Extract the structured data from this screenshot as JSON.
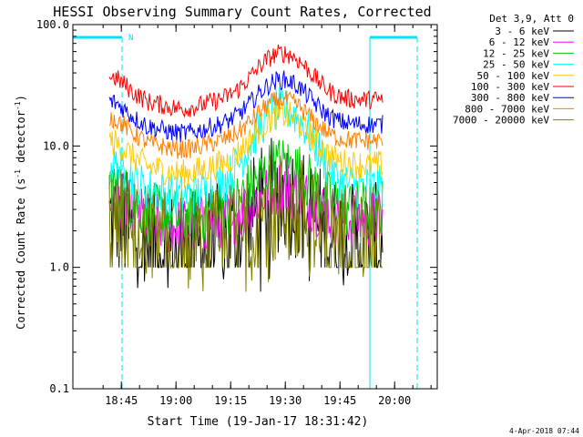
{
  "chart_data": {
    "type": "line",
    "title": "HESSI Observing Summary Count Rates, Corrected",
    "xlabel": "Start Time (19-Jan-17 18:31:42)",
    "ylabel_main": "Corrected Count Rate (s",
    "ylabel_sup1": "-1",
    "ylabel_mid": " detector",
    "ylabel_sup2": "-1",
    "ylabel_end": ")",
    "yscale": "log",
    "ylim": [
      0.1,
      100
    ],
    "y_ticks": [
      {
        "value": 0.1,
        "label": "0.1"
      },
      {
        "value": 1,
        "label": "1.0"
      },
      {
        "value": 10,
        "label": "10.0"
      },
      {
        "value": 100,
        "label": "100.0"
      }
    ],
    "xlim_minutes": [
      0,
      100
    ],
    "x_ticks": [
      {
        "minutes": 13.3,
        "label": "18:45"
      },
      {
        "minutes": 28.3,
        "label": "19:00"
      },
      {
        "minutes": 43.3,
        "label": "19:15"
      },
      {
        "minutes": 58.3,
        "label": "19:30"
      },
      {
        "minutes": 73.3,
        "label": "19:45"
      },
      {
        "minutes": 88.3,
        "label": "20:00"
      }
    ],
    "data_range_minutes": [
      10,
      85
    ],
    "legend_position": "top-right-outside",
    "legend_header": "Det 3,9, Att 0",
    "series": [
      {
        "name": "3 - 6 keV",
        "color": "#000000",
        "base": 1.6,
        "peak": 4.0,
        "noise": 0.5
      },
      {
        "name": "6 - 12 keV",
        "color": "#ff00ff",
        "base": 2.5,
        "peak": 4.5,
        "noise": 0.25
      },
      {
        "name": "12 - 25 keV",
        "color": "#00cc00",
        "base": 3.0,
        "peak": 7.0,
        "noise": 0.25
      },
      {
        "name": "25 - 50 keV",
        "color": "#00ffff",
        "base": 4.6,
        "peak": 20.0,
        "noise": 0.18
      },
      {
        "name": "50 - 100 keV",
        "color": "#ffcc00",
        "base": 7.0,
        "peak": 18.0,
        "noise": 0.12
      },
      {
        "name": "100 - 300 keV",
        "color": "#ff0000",
        "base": 24.0,
        "peak": 58.0,
        "noise": 0.08
      },
      {
        "name": "300 - 800 keV",
        "color": "#0000ff",
        "base": 15.0,
        "peak": 35.0,
        "noise": 0.08
      },
      {
        "name": "800 - 7000 keV",
        "color": "#ff8000",
        "base": 11.0,
        "peak": 24.0,
        "noise": 0.08
      },
      {
        "name": "7000 - 20000 keV",
        "color": "#808000",
        "base": 1.5,
        "peak": 3.0,
        "noise": 0.5
      }
    ],
    "saa_intervals_minutes": [
      [
        0,
        13.5
      ],
      [
        81.5,
        94.5
      ]
    ],
    "night_intervals_minutes": [
      [
        13.5,
        81.5
      ]
    ],
    "annotation": "N",
    "timestamp": "4-Apr-2018 07:44",
    "colors": {
      "axis": "#000000",
      "saa_bar": "#00e5ee",
      "saa_line": "#00e5ee"
    }
  }
}
